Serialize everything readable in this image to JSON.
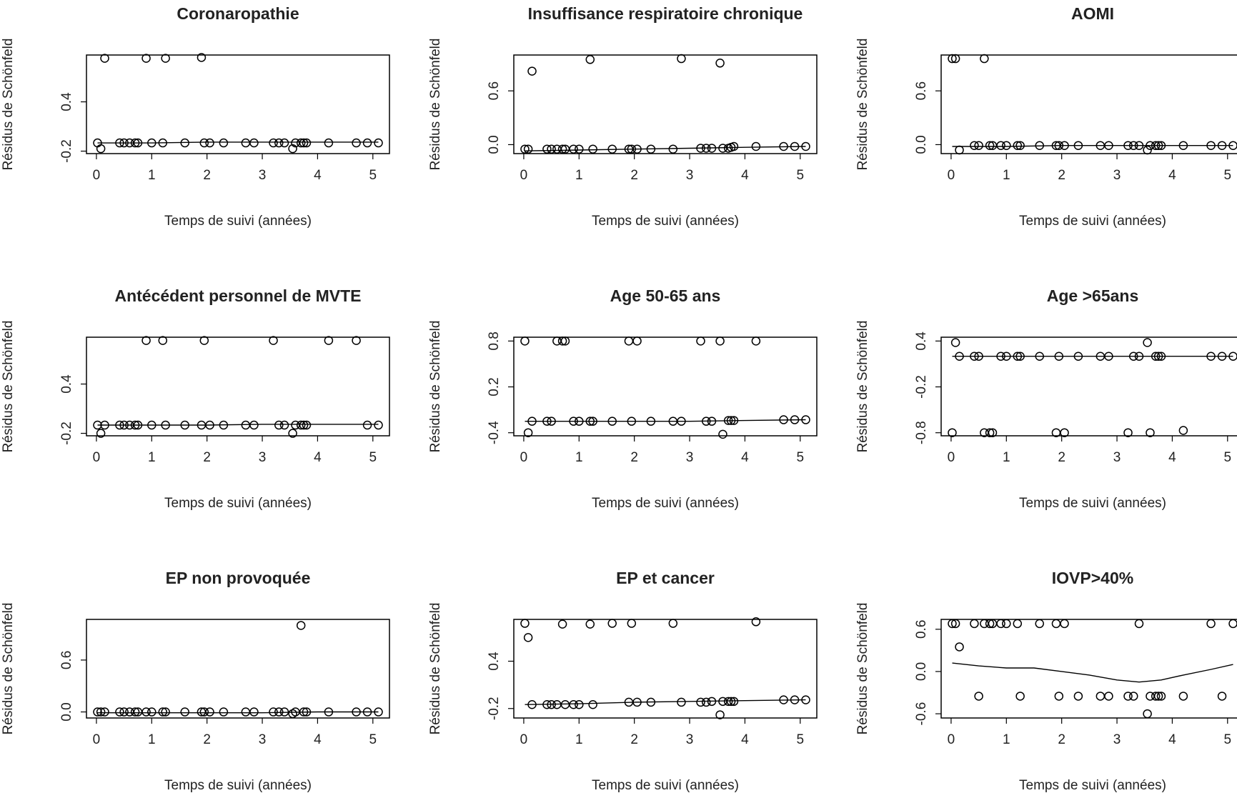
{
  "chart_data": [
    {
      "type": "scatter",
      "title": "Coronaropathie",
      "xlabel": "Temps de suivi (années)",
      "ylabel": "Résidus de Schönfeld",
      "x": [
        0.02,
        0.08,
        0.15,
        0.42,
        0.5,
        0.6,
        0.7,
        0.75,
        0.9,
        1.0,
        1.2,
        1.25,
        1.6,
        1.9,
        1.95,
        2.05,
        2.3,
        2.7,
        2.85,
        3.2,
        3.3,
        3.4,
        3.55,
        3.6,
        3.7,
        3.75,
        3.8,
        4.2,
        4.7,
        4.9,
        5.1
      ],
      "values": [
        -0.1,
        -0.17,
        0.93,
        -0.1,
        -0.1,
        -0.1,
        -0.1,
        -0.1,
        0.93,
        -0.1,
        -0.1,
        0.93,
        -0.1,
        0.94,
        -0.1,
        -0.1,
        -0.1,
        -0.1,
        -0.1,
        -0.1,
        -0.1,
        -0.1,
        -0.17,
        -0.1,
        -0.1,
        -0.1,
        -0.1,
        -0.1,
        -0.1,
        -0.1,
        -0.1
      ],
      "smooth_x": [
        0.02,
        1.0,
        2.0,
        3.0,
        4.0,
        5.1
      ],
      "smooth_y": [
        -0.1,
        -0.1,
        -0.09,
        -0.09,
        -0.09,
        -0.09
      ],
      "xlim": [
        -0.18,
        5.3
      ],
      "ylim": [
        -0.23,
        0.97
      ],
      "xticks": [
        0,
        1,
        2,
        3,
        4,
        5
      ],
      "yticks": [
        -0.2,
        0.4
      ]
    },
    {
      "type": "scatter",
      "title": "Insuffisance respiratoire chronique",
      "xlabel": "Temps de suivi (années)",
      "ylabel": "Résidus de Schönfeld",
      "x": [
        0.02,
        0.08,
        0.15,
        0.42,
        0.5,
        0.6,
        0.7,
        0.75,
        0.9,
        1.0,
        1.2,
        1.25,
        1.6,
        1.9,
        1.95,
        2.05,
        2.3,
        2.7,
        2.85,
        3.2,
        3.3,
        3.4,
        3.55,
        3.6,
        3.7,
        3.75,
        3.8,
        4.2,
        4.7,
        4.9,
        5.1
      ],
      "values": [
        -0.05,
        -0.05,
        0.82,
        -0.05,
        -0.05,
        -0.05,
        -0.05,
        -0.05,
        -0.05,
        -0.05,
        0.95,
        -0.05,
        -0.05,
        -0.05,
        -0.05,
        -0.05,
        -0.05,
        -0.05,
        0.96,
        -0.04,
        -0.04,
        -0.04,
        0.91,
        -0.04,
        -0.04,
        -0.03,
        -0.02,
        -0.02,
        -0.02,
        -0.02,
        -0.02
      ],
      "smooth_x": [
        0.02,
        1.0,
        2.0,
        3.0,
        4.0,
        5.1
      ],
      "smooth_y": [
        -0.07,
        -0.06,
        -0.05,
        -0.04,
        -0.03,
        -0.02
      ],
      "xlim": [
        -0.18,
        5.3
      ],
      "ylim": [
        -0.1,
        1.0
      ],
      "xticks": [
        0,
        1,
        2,
        3,
        4,
        5
      ],
      "yticks": [
        {
          "value": 0,
          "label": "0.0"
        },
        0.6
      ]
    },
    {
      "type": "scatter",
      "title": "AOMI",
      "xlabel": "Temps de suivi (années)",
      "ylabel": "Résidus de Schönfeld",
      "x": [
        0.02,
        0.08,
        0.15,
        0.42,
        0.5,
        0.6,
        0.7,
        0.75,
        0.9,
        1.0,
        1.2,
        1.25,
        1.6,
        1.9,
        1.95,
        2.05,
        2.3,
        2.7,
        2.85,
        3.2,
        3.3,
        3.4,
        3.55,
        3.6,
        3.7,
        3.75,
        3.8,
        4.2,
        4.7,
        4.9,
        5.1
      ],
      "values": [
        0.96,
        0.96,
        -0.06,
        -0.01,
        -0.01,
        0.96,
        -0.01,
        -0.01,
        -0.01,
        -0.01,
        -0.01,
        -0.01,
        -0.01,
        -0.01,
        -0.01,
        -0.01,
        -0.01,
        -0.01,
        -0.01,
        -0.01,
        -0.01,
        -0.01,
        -0.06,
        -0.01,
        -0.01,
        -0.01,
        -0.01,
        -0.01,
        -0.01,
        -0.01,
        -0.01
      ],
      "smooth_x": [
        0.02,
        1.0,
        2.0,
        3.0,
        4.0,
        5.1
      ],
      "smooth_y": [
        -0.02,
        -0.02,
        -0.01,
        -0.01,
        -0.01,
        -0.01
      ],
      "xlim": [
        -0.18,
        5.3
      ],
      "ylim": [
        -0.1,
        1.0
      ],
      "xticks": [
        0,
        1,
        2,
        3,
        4,
        5
      ],
      "yticks": [
        {
          "value": 0,
          "label": "0.0"
        },
        0.6
      ]
    },
    {
      "type": "scatter",
      "title": "Antécédent personnel de MVTE",
      "xlabel": "Temps de suivi (années)",
      "ylabel": "Résidus de Schönfeld",
      "x": [
        0.02,
        0.08,
        0.15,
        0.42,
        0.5,
        0.6,
        0.7,
        0.75,
        0.9,
        1.0,
        1.2,
        1.25,
        1.6,
        1.9,
        1.95,
        2.05,
        2.3,
        2.7,
        2.85,
        3.2,
        3.3,
        3.4,
        3.55,
        3.6,
        3.7,
        3.75,
        3.8,
        4.2,
        4.7,
        4.9,
        5.1
      ],
      "values": [
        -0.1,
        -0.2,
        -0.1,
        -0.1,
        -0.1,
        -0.1,
        -0.1,
        -0.1,
        0.93,
        -0.1,
        0.93,
        -0.1,
        -0.1,
        -0.1,
        0.93,
        -0.1,
        -0.1,
        -0.1,
        -0.1,
        0.93,
        -0.1,
        -0.1,
        -0.2,
        -0.1,
        -0.1,
        -0.1,
        -0.1,
        0.93,
        0.93,
        -0.1,
        -0.1
      ],
      "smooth_x": [
        0.02,
        1.0,
        2.0,
        3.0,
        4.0,
        5.1
      ],
      "smooth_y": [
        -0.1,
        -0.1,
        -0.1,
        -0.09,
        -0.09,
        -0.09
      ],
      "xlim": [
        -0.18,
        5.3
      ],
      "ylim": [
        -0.23,
        0.97
      ],
      "xticks": [
        0,
        1,
        2,
        3,
        4,
        5
      ],
      "yticks": [
        -0.2,
        0.4
      ]
    },
    {
      "type": "scatter",
      "title": "Age 50-65 ans",
      "xlabel": "Temps de suivi (années)",
      "ylabel": "Résidus de Schönfeld",
      "x": [
        0.02,
        0.08,
        0.15,
        0.42,
        0.5,
        0.6,
        0.7,
        0.75,
        0.9,
        1.0,
        1.2,
        1.25,
        1.6,
        1.9,
        1.95,
        2.05,
        2.3,
        2.7,
        2.85,
        3.2,
        3.3,
        3.4,
        3.55,
        3.6,
        3.7,
        3.75,
        3.8,
        4.2,
        4.7,
        4.9,
        5.1
      ],
      "values": [
        0.8,
        -0.4,
        -0.25,
        -0.25,
        -0.25,
        0.8,
        0.8,
        0.8,
        -0.25,
        -0.25,
        -0.25,
        -0.25,
        -0.25,
        0.8,
        -0.25,
        0.8,
        -0.25,
        -0.25,
        -0.25,
        0.8,
        -0.25,
        -0.25,
        0.8,
        -0.42,
        -0.24,
        -0.24,
        -0.24,
        0.8,
        -0.23,
        -0.23,
        -0.23
      ],
      "smooth_x": [
        0.02,
        1.0,
        2.0,
        3.0,
        4.0,
        5.1
      ],
      "smooth_y": [
        -0.25,
        -0.25,
        -0.25,
        -0.25,
        -0.24,
        -0.23
      ],
      "xlim": [
        -0.18,
        5.3
      ],
      "ylim": [
        -0.44,
        0.85
      ],
      "xticks": [
        0,
        1,
        2,
        3,
        4,
        5
      ],
      "yticks": [
        -0.4,
        0.2,
        0.8
      ]
    },
    {
      "type": "scatter",
      "title": "Age >65ans",
      "xlabel": "Temps de suivi (années)",
      "ylabel": "Résidus de Schönfeld",
      "x": [
        0.02,
        0.08,
        0.15,
        0.42,
        0.5,
        0.6,
        0.7,
        0.75,
        0.9,
        1.0,
        1.2,
        1.25,
        1.6,
        1.9,
        1.95,
        2.05,
        2.3,
        2.7,
        2.85,
        3.2,
        3.3,
        3.4,
        3.55,
        3.6,
        3.7,
        3.75,
        3.8,
        4.2,
        4.7,
        4.9,
        5.1
      ],
      "values": [
        -0.8,
        0.38,
        0.2,
        0.2,
        0.2,
        -0.8,
        -0.8,
        -0.8,
        0.2,
        0.2,
        0.2,
        0.2,
        0.2,
        -0.8,
        0.2,
        -0.8,
        0.2,
        0.2,
        0.2,
        -0.8,
        0.2,
        0.2,
        0.38,
        -0.8,
        0.2,
        0.2,
        0.2,
        -0.77,
        0.2,
        0.2,
        0.2
      ],
      "smooth_x": [
        0.02,
        1.0,
        2.0,
        3.0,
        4.0,
        5.1
      ],
      "smooth_y": [
        0.2,
        0.2,
        0.2,
        0.2,
        0.2,
        0.2
      ],
      "xlim": [
        -0.18,
        5.3
      ],
      "ylim": [
        -0.84,
        0.45
      ],
      "xticks": [
        0,
        1,
        2,
        3,
        4,
        5
      ],
      "yticks": [
        -0.8,
        -0.2,
        0.4
      ]
    },
    {
      "type": "scatter",
      "title": "EP non provoquée",
      "xlabel": "Temps de suivi (années)",
      "ylabel": "Résidus de Schönfeld",
      "x": [
        0.02,
        0.08,
        0.15,
        0.42,
        0.5,
        0.6,
        0.7,
        0.75,
        0.9,
        1.0,
        1.2,
        1.25,
        1.6,
        1.9,
        1.95,
        2.05,
        2.3,
        2.7,
        2.85,
        3.2,
        3.3,
        3.4,
        3.55,
        3.6,
        3.7,
        3.75,
        3.8,
        4.2,
        4.7,
        4.9,
        5.1
      ],
      "values": [
        0,
        0,
        0,
        0,
        0,
        0,
        0,
        0,
        0,
        0,
        0,
        0,
        0,
        0,
        0,
        0,
        0,
        0,
        0,
        0,
        0,
        0,
        -0.02,
        0,
        1.0,
        0,
        0,
        0,
        0,
        0,
        0
      ],
      "smooth_x": [
        0.02,
        1.0,
        2.0,
        3.0,
        4.0,
        5.1
      ],
      "smooth_y": [
        -0.01,
        -0.01,
        -0.01,
        -0.01,
        0.0,
        0.0
      ],
      "xlim": [
        -0.18,
        5.3
      ],
      "ylim": [
        -0.07,
        1.07
      ],
      "xticks": [
        0,
        1,
        2,
        3,
        4,
        5
      ],
      "yticks": [
        {
          "value": 0,
          "label": "0.0"
        },
        0.6
      ]
    },
    {
      "type": "scatter",
      "title": "EP et cancer",
      "xlabel": "Temps de suivi (années)",
      "ylabel": "Résidus de Schönfeld",
      "x": [
        0.02,
        0.08,
        0.15,
        0.42,
        0.5,
        0.6,
        0.7,
        0.75,
        0.9,
        1.0,
        1.2,
        1.25,
        1.6,
        1.9,
        1.95,
        2.05,
        2.3,
        2.7,
        2.85,
        3.2,
        3.3,
        3.4,
        3.55,
        3.6,
        3.7,
        3.75,
        3.8,
        4.2,
        4.7,
        4.9,
        5.1
      ],
      "values": [
        0.88,
        0.7,
        -0.15,
        -0.15,
        -0.15,
        -0.15,
        0.87,
        -0.15,
        -0.15,
        -0.15,
        0.87,
        -0.15,
        0.88,
        -0.12,
        0.88,
        -0.12,
        -0.12,
        0.88,
        -0.12,
        -0.12,
        -0.12,
        -0.11,
        -0.28,
        -0.11,
        -0.11,
        -0.11,
        -0.11,
        0.9,
        -0.09,
        -0.09,
        -0.09
      ],
      "smooth_x": [
        0.02,
        1.0,
        2.0,
        3.0,
        4.0,
        5.1
      ],
      "smooth_y": [
        -0.15,
        -0.14,
        -0.12,
        -0.11,
        -0.1,
        -0.09
      ],
      "xlim": [
        -0.18,
        5.3
      ],
      "ylim": [
        -0.32,
        0.93
      ],
      "xticks": [
        0,
        1,
        2,
        3,
        4,
        5
      ],
      "yticks": [
        -0.2,
        0.4
      ]
    },
    {
      "type": "scatter",
      "title": "IOVP>40%",
      "xlabel": "Temps de suivi (années)",
      "ylabel": "Résidus de Schönfeld",
      "x": [
        0.02,
        0.08,
        0.15,
        0.42,
        0.5,
        0.6,
        0.7,
        0.75,
        0.9,
        1.0,
        1.2,
        1.25,
        1.6,
        1.9,
        1.95,
        2.05,
        2.3,
        2.7,
        2.85,
        3.2,
        3.3,
        3.4,
        3.55,
        3.6,
        3.7,
        3.75,
        3.8,
        4.2,
        4.7,
        4.9,
        5.1
      ],
      "values": [
        0.68,
        0.68,
        0.35,
        0.68,
        -0.35,
        0.68,
        0.68,
        0.68,
        0.68,
        0.68,
        0.68,
        -0.35,
        0.68,
        0.68,
        -0.35,
        0.68,
        -0.35,
        -0.35,
        -0.35,
        -0.35,
        -0.35,
        0.68,
        -0.6,
        -0.35,
        -0.35,
        -0.35,
        -0.35,
        -0.35,
        0.68,
        -0.35,
        0.68
      ],
      "smooth_x": [
        0.02,
        0.5,
        1.0,
        1.5,
        2.0,
        2.5,
        3.0,
        3.4,
        3.8,
        4.2,
        4.7,
        5.1
      ],
      "smooth_y": [
        0.12,
        0.08,
        0.05,
        0.05,
        0.0,
        -0.05,
        -0.12,
        -0.15,
        -0.12,
        -0.05,
        0.03,
        0.1
      ],
      "xlim": [
        -0.18,
        5.3
      ],
      "ylim": [
        -0.66,
        0.74
      ],
      "xticks": [
        0,
        1,
        2,
        3,
        4,
        5
      ],
      "yticks": [
        -0.6,
        {
          "value": 0,
          "label": "0.0"
        },
        0.6
      ]
    }
  ]
}
